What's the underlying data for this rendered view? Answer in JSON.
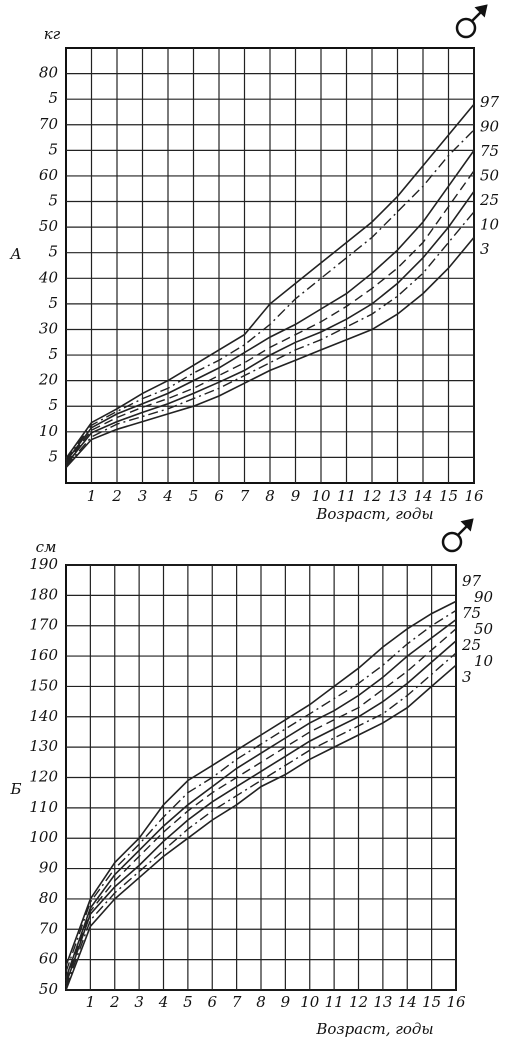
{
  "chart_data": [
    {
      "type": "line",
      "title": "А",
      "y_label": "кг",
      "x_label": "Возраст, годы",
      "x": [
        0,
        1,
        2,
        3,
        4,
        5,
        6,
        7,
        8,
        9,
        10,
        11,
        12,
        13,
        14,
        15,
        16
      ],
      "xlim": [
        0,
        16
      ],
      "xticks": [
        1,
        2,
        3,
        4,
        5,
        6,
        7,
        8,
        9,
        10,
        11,
        12,
        13,
        14,
        15,
        16
      ],
      "ylim": [
        0,
        85
      ],
      "yticks": [
        5,
        10,
        {
          "value": 15,
          "label": "5"
        },
        20,
        {
          "value": 25,
          "label": "5"
        },
        30,
        {
          "value": 35,
          "label": "5"
        },
        40,
        {
          "value": 45,
          "label": "5"
        },
        50,
        {
          "value": 55,
          "label": "5"
        },
        60,
        {
          "value": 65,
          "label": "5"
        },
        70,
        {
          "value": 75,
          "label": "5"
        },
        80
      ],
      "grid": true,
      "series": [
        {
          "name": "97",
          "color": "#222",
          "style": "solid",
          "values": [
            4.8,
            11.8,
            14.5,
            17.5,
            20,
            23,
            26,
            29,
            35,
            39,
            43,
            47,
            51,
            56,
            62,
            68,
            74
          ]
        },
        {
          "name": "90",
          "color": "#222",
          "style": "dashdot",
          "values": [
            4.5,
            11.3,
            14,
            16.5,
            18.5,
            21.5,
            24,
            27,
            31,
            36,
            40,
            44,
            48,
            53,
            58,
            64,
            69
          ]
        },
        {
          "name": "75",
          "color": "#222",
          "style": "solid",
          "values": [
            4.2,
            10.8,
            13.5,
            15.5,
            17.5,
            20,
            22.5,
            25.5,
            28.5,
            31,
            34,
            37,
            41,
            45.5,
            51,
            58,
            65
          ]
        },
        {
          "name": "50",
          "color": "#222",
          "style": "dashed",
          "values": [
            3.9,
            10.3,
            12.8,
            14.8,
            16.5,
            18.5,
            21,
            23.5,
            26.5,
            29,
            31.5,
            34.5,
            38,
            42,
            47,
            54,
            61
          ]
        },
        {
          "name": "25",
          "color": "#222",
          "style": "solid",
          "values": [
            3.6,
            9.8,
            12,
            13.8,
            15.5,
            17.5,
            19.7,
            22,
            25,
            27.5,
            29.5,
            32,
            35,
            39,
            44,
            50,
            57
          ]
        },
        {
          "name": "10",
          "color": "#222",
          "style": "dashdot",
          "values": [
            3.3,
            9,
            11.5,
            13,
            14.5,
            16.5,
            18.5,
            21,
            23.5,
            26,
            28,
            30.5,
            33,
            36.5,
            41,
            47,
            53
          ]
        },
        {
          "name": "3",
          "color": "#222",
          "style": "solid",
          "values": [
            3,
            8.5,
            10.5,
            12,
            13.5,
            15,
            17,
            19.5,
            22,
            24,
            26,
            28,
            30,
            33,
            37,
            42,
            48
          ]
        }
      ]
    },
    {
      "type": "line",
      "title": "Б",
      "y_label": "см",
      "x_label": "Возраст, годы",
      "x": [
        0,
        1,
        2,
        3,
        4,
        5,
        6,
        7,
        8,
        9,
        10,
        11,
        12,
        13,
        14,
        15,
        16
      ],
      "xlim": [
        0,
        16
      ],
      "xticks": [
        1,
        2,
        3,
        4,
        5,
        6,
        7,
        8,
        9,
        10,
        11,
        12,
        13,
        14,
        15,
        16
      ],
      "ylim": [
        50,
        190
      ],
      "yticks": [
        50,
        60,
        70,
        80,
        90,
        100,
        110,
        120,
        130,
        140,
        150,
        160,
        170,
        180,
        190
      ],
      "grid": true,
      "series": [
        {
          "name": "97",
          "color": "#222",
          "style": "solid",
          "values": [
            58,
            80,
            92,
            100,
            111,
            119,
            124,
            129,
            134,
            139,
            144,
            150,
            156,
            163,
            169,
            174,
            178
          ]
        },
        {
          "name": "90",
          "color": "#222",
          "style": "dashdot",
          "values": [
            56,
            79,
            90,
            98,
            107,
            115,
            120,
            126,
            131,
            136,
            141,
            146,
            151,
            157,
            164,
            170,
            175
          ]
        },
        {
          "name": "75",
          "color": "#222",
          "style": "solid",
          "values": [
            54,
            77,
            88,
            96,
            104,
            111,
            117,
            123,
            128,
            133,
            138,
            142,
            147,
            153,
            160,
            166,
            172
          ]
        },
        {
          "name": "50",
          "color": "#222",
          "style": "dashed",
          "values": [
            53,
            76,
            86,
            94,
            102,
            109,
            115,
            120,
            125,
            130,
            135,
            139,
            143,
            149,
            155,
            162,
            169
          ]
        },
        {
          "name": "25",
          "color": "#222",
          "style": "solid",
          "values": [
            52,
            75,
            84,
            91,
            99,
            106,
            112,
            117,
            122,
            127,
            132,
            136,
            140,
            145,
            151,
            158,
            165
          ]
        },
        {
          "name": "10",
          "color": "#222",
          "style": "dashdot",
          "values": [
            51,
            73,
            82,
            89,
            96,
            103,
            109,
            114,
            119,
            124,
            129,
            133,
            137,
            141,
            147,
            154,
            161
          ]
        },
        {
          "name": "3",
          "color": "#222",
          "style": "solid",
          "values": [
            50,
            71,
            80,
            87,
            94,
            100,
            106,
            111,
            117,
            121,
            126,
            130,
            134,
            138,
            143,
            150,
            157
          ]
        }
      ]
    }
  ]
}
